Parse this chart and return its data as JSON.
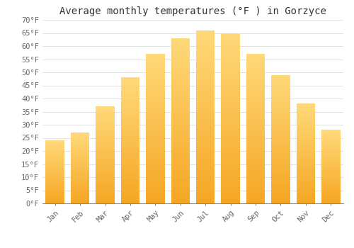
{
  "title": "Average monthly temperatures (°F ) in Gorzyce",
  "months": [
    "Jan",
    "Feb",
    "Mar",
    "Apr",
    "May",
    "Jun",
    "Jul",
    "Aug",
    "Sep",
    "Oct",
    "Nov",
    "Dec"
  ],
  "values": [
    24,
    27,
    37,
    48,
    57,
    63,
    66,
    65,
    57,
    49,
    38,
    28
  ],
  "bar_color_bottom": "#F5A623",
  "bar_color_top": "#FFD97A",
  "ylim": [
    0,
    70
  ],
  "yticks": [
    0,
    5,
    10,
    15,
    20,
    25,
    30,
    35,
    40,
    45,
    50,
    55,
    60,
    65,
    70
  ],
  "ytick_labels": [
    "0°F",
    "5°F",
    "10°F",
    "15°F",
    "20°F",
    "25°F",
    "30°F",
    "35°F",
    "40°F",
    "45°F",
    "50°F",
    "55°F",
    "60°F",
    "65°F",
    "70°F"
  ],
  "background_color": "#ffffff",
  "grid_color": "#dddddd",
  "title_fontsize": 10,
  "tick_fontsize": 7.5,
  "font_family": "monospace"
}
